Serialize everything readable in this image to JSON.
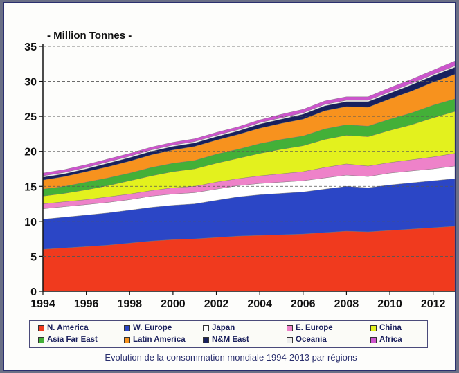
{
  "chart_data": {
    "type": "area",
    "stacked": true,
    "title": "",
    "unit_label": "- Million Tonnes -",
    "caption": "Evolution de la consommation mondiale 1994-2013 par régions",
    "x": [
      1994,
      1995,
      1996,
      1997,
      1998,
      1999,
      2000,
      2001,
      2002,
      2003,
      2004,
      2005,
      2006,
      2007,
      2008,
      2009,
      2010,
      2011,
      2012,
      2013
    ],
    "x_ticks": [
      "1994",
      "1996",
      "1998",
      "2000",
      "2002",
      "2004",
      "2006",
      "2008",
      "2010",
      "2012"
    ],
    "y_ticks": [
      "0",
      "5",
      "10",
      "15",
      "20",
      "25",
      "30",
      "35"
    ],
    "ylim": [
      0,
      35
    ],
    "grid": "horizontal dashed",
    "legend_position": "bottom",
    "series": [
      {
        "name": "N. America",
        "color": "#f03a1e",
        "values": [
          6.0,
          6.2,
          6.4,
          6.6,
          6.9,
          7.2,
          7.4,
          7.5,
          7.7,
          7.9,
          8.0,
          8.1,
          8.2,
          8.4,
          8.6,
          8.5,
          8.7,
          8.9,
          9.1,
          9.3
        ]
      },
      {
        "name": "W. Europe",
        "color": "#2b46c6",
        "values": [
          4.3,
          4.4,
          4.5,
          4.6,
          4.7,
          4.8,
          4.9,
          5.0,
          5.3,
          5.6,
          5.8,
          5.9,
          6.0,
          6.2,
          6.4,
          6.3,
          6.5,
          6.6,
          6.7,
          6.8
        ]
      },
      {
        "name": "Japan",
        "color": "#ffffff",
        "values": [
          1.5,
          1.5,
          1.5,
          1.5,
          1.5,
          1.6,
          1.6,
          1.6,
          1.6,
          1.6,
          1.6,
          1.6,
          1.6,
          1.6,
          1.6,
          1.6,
          1.7,
          1.7,
          1.7,
          1.8
        ]
      },
      {
        "name": "E. Europe",
        "color": "#ee82c9",
        "values": [
          0.7,
          0.7,
          0.7,
          0.8,
          0.8,
          0.8,
          0.9,
          0.9,
          1.0,
          1.0,
          1.1,
          1.2,
          1.3,
          1.5,
          1.6,
          1.5,
          1.5,
          1.6,
          1.7,
          1.8
        ]
      },
      {
        "name": "China",
        "color": "#e3f11e",
        "values": [
          1.1,
          1.2,
          1.4,
          1.6,
          1.9,
          2.1,
          2.3,
          2.5,
          2.7,
          2.9,
          3.2,
          3.5,
          3.7,
          4.0,
          4.1,
          4.2,
          4.6,
          5.0,
          5.6,
          6.0
        ]
      },
      {
        "name": "Asia Far East",
        "color": "#43b038",
        "values": [
          1.0,
          1.0,
          1.1,
          1.1,
          1.1,
          1.2,
          1.2,
          1.2,
          1.3,
          1.3,
          1.4,
          1.4,
          1.4,
          1.5,
          1.5,
          1.5,
          1.6,
          1.7,
          1.8,
          1.8
        ]
      },
      {
        "name": "Latin America",
        "color": "#f7921e",
        "values": [
          1.3,
          1.4,
          1.5,
          1.6,
          1.7,
          1.8,
          1.9,
          2.0,
          2.0,
          2.1,
          2.2,
          2.3,
          2.4,
          2.6,
          2.6,
          2.7,
          2.9,
          3.1,
          3.3,
          3.5
        ]
      },
      {
        "name": "N&M East",
        "color": "#18205e",
        "values": [
          0.4,
          0.4,
          0.4,
          0.5,
          0.5,
          0.5,
          0.5,
          0.5,
          0.5,
          0.5,
          0.6,
          0.6,
          0.7,
          0.7,
          0.7,
          0.8,
          0.8,
          0.9,
          0.9,
          1.0
        ]
      },
      {
        "name": "Oceania",
        "color": "#eeeeee",
        "values": [
          0.2,
          0.2,
          0.2,
          0.2,
          0.2,
          0.2,
          0.2,
          0.2,
          0.2,
          0.2,
          0.2,
          0.2,
          0.2,
          0.2,
          0.2,
          0.2,
          0.2,
          0.2,
          0.2,
          0.2
        ]
      },
      {
        "name": "Africa",
        "color": "#cc55cc",
        "values": [
          0.4,
          0.4,
          0.4,
          0.4,
          0.4,
          0.4,
          0.4,
          0.4,
          0.4,
          0.4,
          0.4,
          0.5,
          0.5,
          0.5,
          0.5,
          0.5,
          0.6,
          0.6,
          0.6,
          0.7
        ]
      }
    ]
  }
}
